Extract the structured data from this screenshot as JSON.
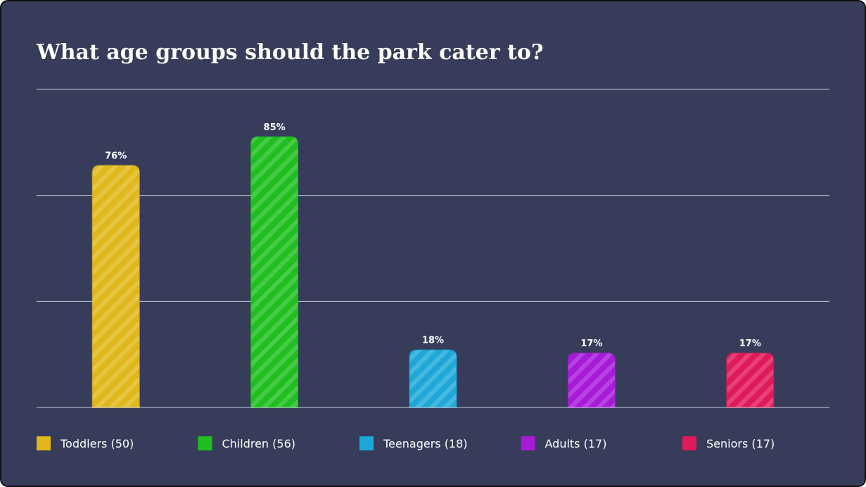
{
  "chart_data": {
    "type": "bar",
    "title": "What age groups should the park cater to?",
    "categories": [
      "Toddlers (50)",
      "Children (56)",
      "Teenagers (18)",
      "Adults (17)",
      "Seniors (17)"
    ],
    "values": [
      76,
      85,
      18,
      17,
      17
    ],
    "value_labels": [
      "76%",
      "85%",
      "18%",
      "17%",
      "17%"
    ],
    "colors": [
      "#e0b81c",
      "#1fbf1f",
      "#1ea8d8",
      "#a61ad8",
      "#e0195a"
    ],
    "ylim": [
      0,
      100
    ],
    "grid": true
  }
}
